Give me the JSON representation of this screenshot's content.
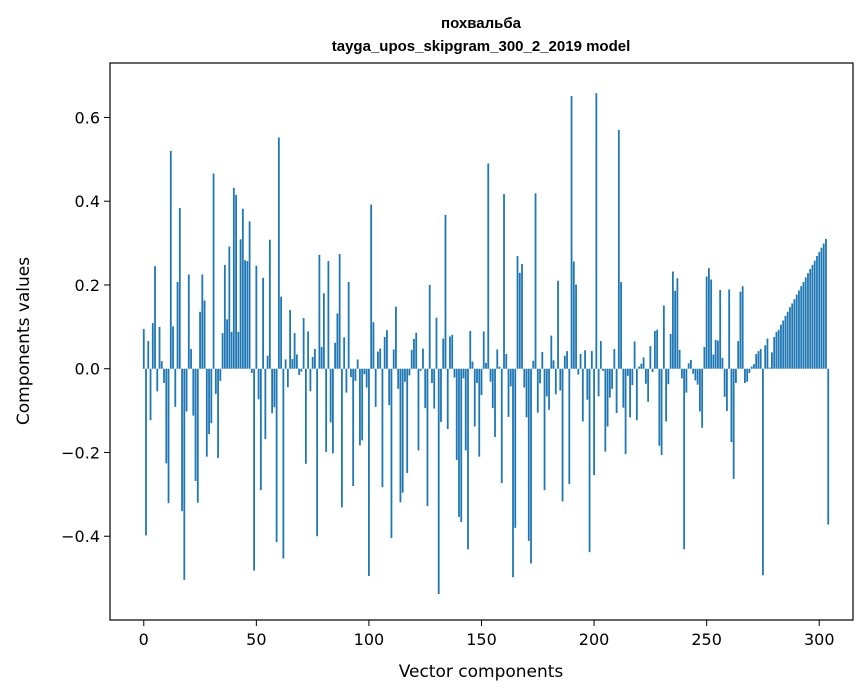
{
  "chart_data": {
    "type": "bar",
    "title": "похвальба",
    "subtitle": "tayga_upos_skipgram_300_2_2019 model",
    "xlabel": "Vector components",
    "ylabel": "Components values",
    "xlim": [
      -15,
      315
    ],
    "ylim": [
      -0.6,
      0.73
    ],
    "xticks": [
      0,
      50,
      100,
      150,
      200,
      250,
      300
    ],
    "yticks": [
      -0.4,
      -0.2,
      0.0,
      0.2,
      0.4,
      0.6
    ],
    "xtick_labels": [
      "0",
      "50",
      "100",
      "150",
      "200",
      "250",
      "300"
    ],
    "ytick_labels": [
      "−0.4",
      "−0.2",
      "0.0",
      "0.2",
      "0.4",
      "0.6"
    ],
    "bar_color": "#1f77b4",
    "grid": false,
    "values": [
      0.095,
      -0.398,
      0.066,
      -0.123,
      0.109,
      0.245,
      -0.054,
      0.1,
      0.018,
      -0.034,
      -0.226,
      -0.321,
      0.52,
      0.101,
      -0.091,
      0.207,
      0.384,
      -0.34,
      -0.504,
      -0.102,
      0.225,
      0.047,
      -0.112,
      -0.268,
      -0.32,
      0.136,
      0.225,
      0.163,
      -0.21,
      -0.156,
      -0.13,
      0.466,
      -0.06,
      -0.213,
      -0.029,
      0.085,
      0.248,
      0.118,
      0.292,
      0.088,
      0.432,
      0.415,
      0.088,
      0.309,
      0.382,
      0.259,
      0.257,
      0.352,
      -0.01,
      -0.482,
      0.246,
      -0.073,
      -0.29,
      0.217,
      -0.168,
      0.031,
      0.308,
      -0.106,
      -0.092,
      -0.414,
      0.552,
      0.172,
      -0.453,
      0.022,
      -0.044,
      0.14,
      0.023,
      0.085,
      0.034,
      -0.015,
      -0.007,
      0.121,
      -0.227,
      0.089,
      -0.054,
      0.028,
      0.047,
      -0.4,
      0.272,
      0.052,
      0.18,
      -0.199,
      0.257,
      -0.128,
      -0.202,
      0.062,
      0.132,
      0.274,
      -0.331,
      0.075,
      -0.057,
      0.207,
      -0.02,
      -0.28,
      -0.029,
      0.022,
      -0.183,
      -0.171,
      -0.013,
      -0.045,
      -0.495,
      0.392,
      0.111,
      -0.091,
      0.041,
      0.048,
      -0.283,
      0.076,
      0.092,
      -0.087,
      -0.404,
      0.046,
      0.148,
      -0.048,
      -0.319,
      -0.296,
      -0.031,
      -0.249,
      -0.016,
      0.045,
      0.071,
      0.086,
      -0.195,
      -0.005,
      0.048,
      -0.094,
      -0.328,
      0.2,
      -0.034,
      -0.095,
      0.122,
      -0.538,
      -0.127,
      0.072,
      0.367,
      -0.144,
      0.077,
      0.081,
      -0.021,
      -0.218,
      -0.354,
      -0.366,
      -0.023,
      -0.195,
      -0.431,
      0.09,
      0.017,
      -0.138,
      -0.034,
      -0.21,
      -0.063,
      0.089,
      0.014,
      0.49,
      -0.031,
      -0.094,
      -0.163,
      0.046,
      0.005,
      -0.273,
      0.417,
      0.035,
      -0.115,
      -0.042,
      -0.498,
      -0.38,
      0.269,
      0.229,
      0.25,
      -0.045,
      -0.116,
      -0.411,
      -0.465,
      0.019,
      0.419,
      -0.105,
      -0.035,
      0.04,
      -0.29,
      -0.066,
      -0.098,
      0.079,
      0.02,
      -0.061,
      0.21,
      -0.052,
      -0.317,
      0.031,
      0.042,
      -0.275,
      0.651,
      0.256,
      0.201,
      -0.014,
      0.035,
      -0.126,
      0.044,
      -0.074,
      -0.438,
      0.042,
      -0.254,
      0.658,
      -0.066,
      0.066,
      -0.005,
      -0.198,
      -0.138,
      -0.069,
      -0.048,
      0.047,
      -0.106,
      0.57,
      0.207,
      -0.093,
      -0.204,
      -0.017,
      -0.116,
      -0.039,
      0.065,
      -0.123,
      0.005,
      0.012,
      0.027,
      -0.036,
      -0.079,
      0.054,
      -0.008,
      0.09,
      0.093,
      -0.184,
      -0.206,
      0.151,
      -0.126,
      -0.037,
      0.083,
      0.232,
      0.186,
      0.216,
      0.045,
      -0.023,
      -0.431,
      -0.057,
      0.013,
      0.021,
      -0.012,
      -0.028,
      -0.038,
      -0.102,
      -0.141,
      0.052,
      0.22,
      0.24,
      0.213,
      0.034,
      0.069,
      0.067,
      0.188,
      0.026,
      -0.067,
      -0.101,
      0.189,
      -0.175,
      -0.263,
      -0.034,
      0.066,
      0.184,
      0.197,
      -0.034,
      -0.031,
      -0.01,
      0.005,
      0.011,
      0.035,
      0.042,
      0.047,
      -0.493,
      0.056,
      0.072,
      0.003,
      0.039,
      0.076,
      0.088,
      0.093,
      0.105,
      0.115,
      0.126,
      0.136,
      0.147,
      0.156,
      0.166,
      0.177,
      0.187,
      0.197,
      0.207,
      0.218,
      0.228,
      0.238,
      0.248,
      0.258,
      0.269,
      0.279,
      0.289,
      0.299,
      0.31,
      -0.372
    ]
  }
}
